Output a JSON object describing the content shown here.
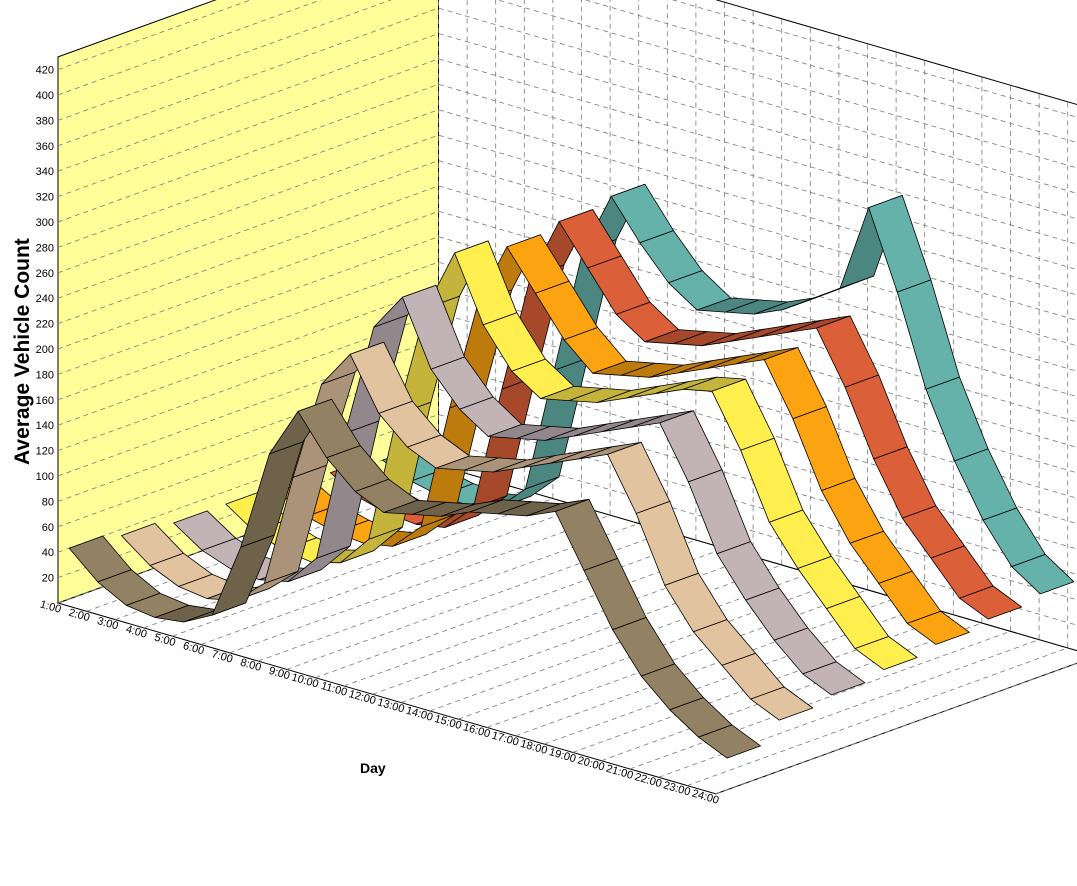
{
  "chart_data": {
    "type": "area",
    "subtype": "3d-ribbon",
    "title": "",
    "ylabel": "Average Vehicle Count",
    "xlabel": "Day",
    "x_ticks": [
      "1:00",
      "2:00",
      "3:00",
      "4:00",
      "5:00",
      "6:00",
      "7:00",
      "8:00",
      "9:00",
      "10:00",
      "11:00",
      "12:00",
      "13:00",
      "14:00",
      "15:00",
      "16:00",
      "17:00",
      "18:00",
      "19:00",
      "20:00",
      "21:00",
      "22:00",
      "23:00",
      "24:00"
    ],
    "y_ticks": [
      20,
      40,
      60,
      80,
      100,
      120,
      140,
      160,
      180,
      200,
      220,
      240,
      260,
      280,
      300,
      320,
      340,
      360,
      380,
      400,
      420
    ],
    "ylim": [
      0,
      430
    ],
    "grid": true,
    "legend": "none",
    "colors": {
      "back_wall": "#ffff99",
      "side_wall": "#ffffff",
      "edge": "#000000",
      "grid": "#7a7a7a"
    },
    "series": [
      {
        "color": "#8a7a5c",
        "values": [
          40,
          20,
          8,
          5,
          8,
          20,
          80,
          160,
          200,
          170,
          150,
          140,
          145,
          150,
          160,
          165,
          170,
          180,
          140,
          100,
          70,
          50,
          35,
          25
        ]
      },
      {
        "color": "#d4b896",
        "values": [
          35,
          18,
          8,
          5,
          10,
          30,
          120,
          200,
          230,
          190,
          170,
          160,
          165,
          170,
          180,
          190,
          200,
          210,
          170,
          120,
          90,
          70,
          50,
          40
        ]
      },
      {
        "color": "#b7a9ac",
        "values": [
          30,
          15,
          7,
          5,
          10,
          35,
          140,
          230,
          260,
          210,
          185,
          170,
          175,
          180,
          190,
          200,
          210,
          220,
          180,
          130,
          100,
          75,
          55,
          45
        ]
      },
      {
        "color": "#f5e14a",
        "values": [
          30,
          15,
          7,
          4,
          10,
          35,
          140,
          230,
          280,
          230,
          200,
          185,
          190,
          195,
          205,
          215,
          225,
          230,
          190,
          140,
          110,
          85,
          60,
          50
        ]
      },
      {
        "color": "#ee9a10",
        "values": [
          25,
          12,
          6,
          4,
          8,
          30,
          130,
          220,
          270,
          240,
          210,
          190,
          195,
          200,
          210,
          220,
          230,
          240,
          200,
          150,
          115,
          90,
          65,
          55
        ]
      },
      {
        "color": "#cf5a35",
        "values": [
          25,
          12,
          6,
          4,
          8,
          30,
          130,
          225,
          275,
          245,
          215,
          200,
          205,
          210,
          220,
          230,
          240,
          250,
          210,
          160,
          120,
          95,
          70,
          60
        ]
      },
      {
        "color": "#5fa8a0",
        "values": [
          20,
          10,
          5,
          4,
          8,
          30,
          130,
          230,
          280,
          250,
          225,
          210,
          215,
          220,
          230,
          245,
          260,
          330,
          270,
          200,
          150,
          110,
          80,
          65
        ]
      }
    ]
  }
}
